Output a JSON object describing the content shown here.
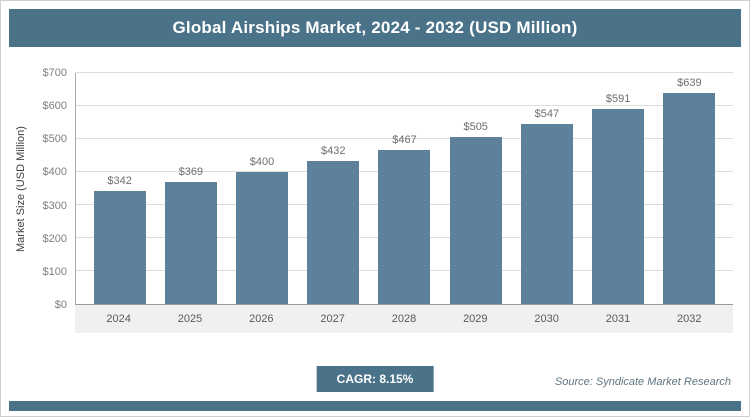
{
  "header": {
    "title": "Global Airships Market, 2024 - 2032 (USD Million)"
  },
  "chart_data": {
    "type": "bar",
    "title": "Global Airships Market, 2024 - 2032 (USD Million)",
    "categories": [
      "2024",
      "2025",
      "2026",
      "2027",
      "2028",
      "2029",
      "2030",
      "2031",
      "2032"
    ],
    "values": [
      342,
      369,
      400,
      432,
      467,
      505,
      547,
      591,
      639
    ],
    "labels": [
      "$342",
      "$369",
      "$400",
      "$432",
      "$467",
      "$505",
      "$547",
      "$591",
      "$639"
    ],
    "xlabel": "",
    "ylabel": "Market Size (USD Million)",
    "ylim": [
      0,
      700
    ],
    "ytick_step": 100,
    "ytick_prefix": "$",
    "label_prefix": "$",
    "grid": true,
    "legend": "none",
    "bar_color": "#5d819b"
  },
  "footer": {
    "cagr_label": "CAGR: 8.15%",
    "source": "Source: Syndicate Market Research"
  },
  "colors": {
    "accent": "#4a7389",
    "bar": "#5d819b",
    "grid_line": "#dcdcdc",
    "axis_text": "#7f7f7f",
    "xaxis_band": "#f0f0f0"
  }
}
